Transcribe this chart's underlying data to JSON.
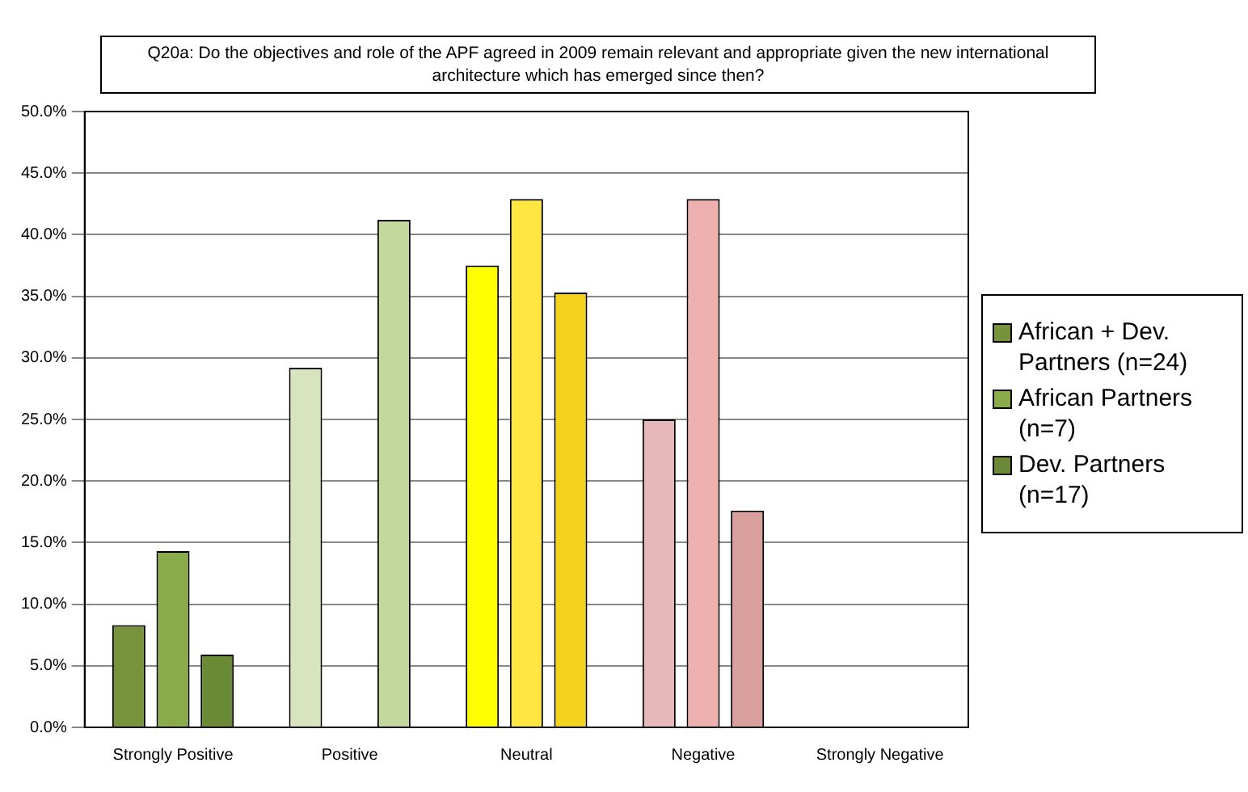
{
  "chart_data": {
    "type": "bar",
    "title": "Q20a: Do the objectives and role of the APF agreed in 2009 remain relevant and appropriate given the new international architecture which has emerged since then?",
    "categories": [
      "Strongly Positive",
      "Positive",
      "Neutral",
      "Negative",
      "Strongly Negative"
    ],
    "series": [
      {
        "name": "African + Dev. Partners (n=24)",
        "colors": [
          "#77933c",
          "#d7e4bd",
          "#ffff00",
          "#e6b9b8",
          "#cccccc"
        ],
        "values": [
          8.3,
          29.2,
          37.5,
          25.0,
          0
        ]
      },
      {
        "name": "African Partners (n=7)",
        "colors": [
          "#8aab4a",
          "#d7e4bd",
          "#ffe640",
          "#eeb0ae",
          "#cccccc"
        ],
        "values": [
          14.3,
          0,
          42.9,
          42.9,
          0
        ]
      },
      {
        "name": "Dev. Partners (n=17)",
        "colors": [
          "#6b8a35",
          "#c4d89e",
          "#f2d21c",
          "#d9a09e",
          "#cccccc"
        ],
        "values": [
          5.9,
          41.2,
          35.3,
          17.6,
          0
        ]
      }
    ],
    "ylim": [
      0,
      50
    ],
    "yticks": [
      {
        "value": 0,
        "label": "0.0%"
      },
      {
        "value": 5,
        "label": "5.0%"
      },
      {
        "value": 10,
        "label": "10.0%"
      },
      {
        "value": 15,
        "label": "15.0%"
      },
      {
        "value": 20,
        "label": "20.0%"
      },
      {
        "value": 25,
        "label": "25.0%"
      },
      {
        "value": 30,
        "label": "30.0%"
      },
      {
        "value": 35,
        "label": "35.0%"
      },
      {
        "value": 40,
        "label": "40.0%"
      },
      {
        "value": 45,
        "label": "45.0%"
      },
      {
        "value": 50,
        "label": "50.0%"
      }
    ],
    "grid": "y",
    "legend": "right"
  }
}
